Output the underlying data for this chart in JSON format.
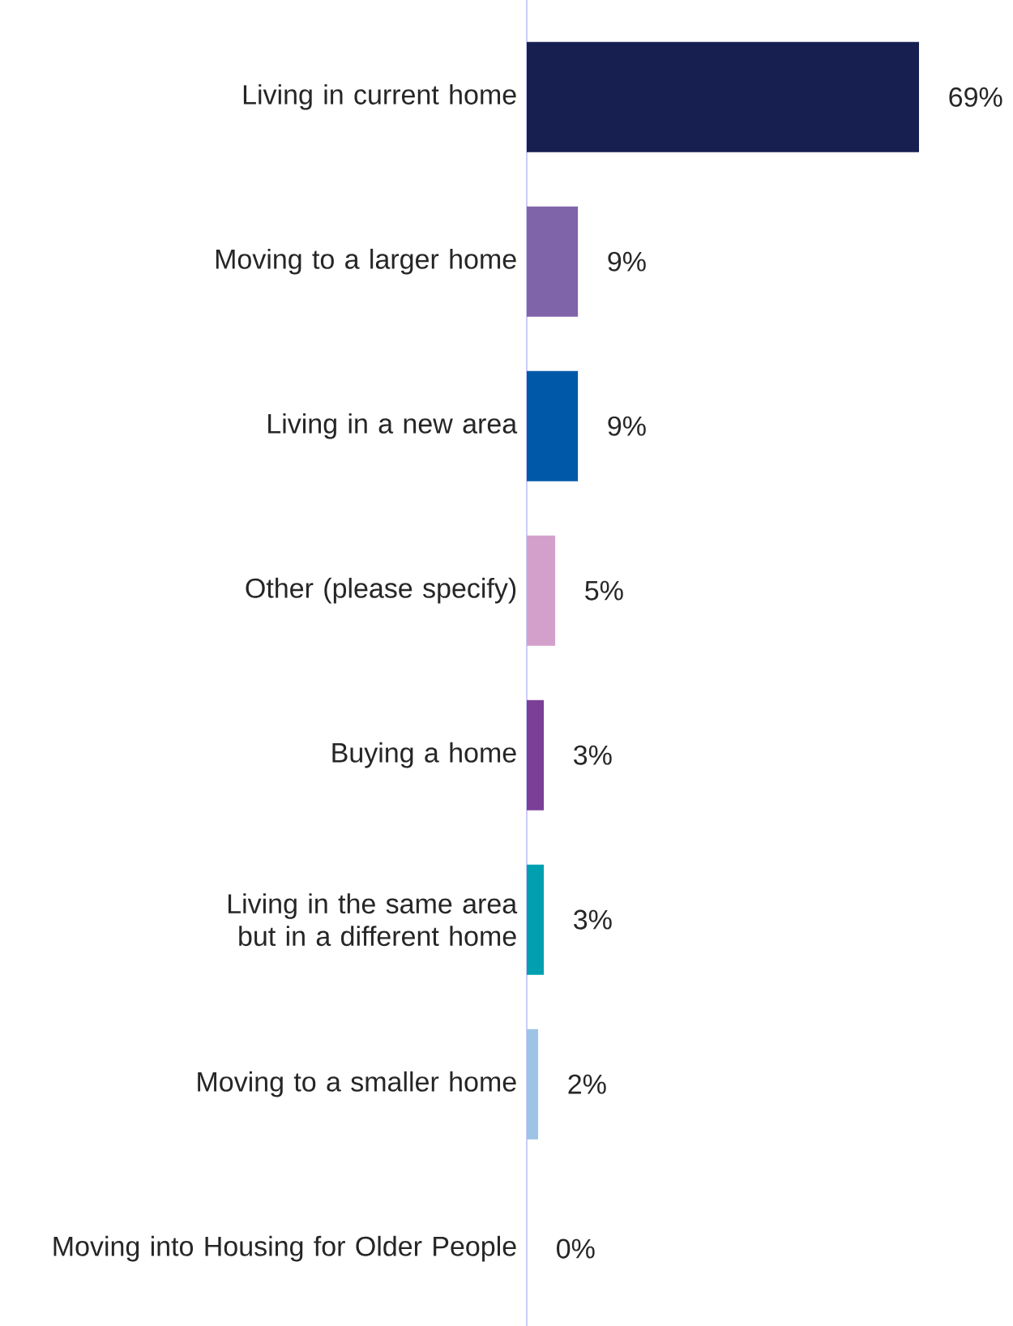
{
  "chart_data": {
    "type": "bar",
    "orientation": "horizontal",
    "categories": [
      "Living in current home",
      "Moving to a larger home",
      "Living in a new area",
      "Other (please specify)",
      "Buying a home",
      "Living in the same area but in a different home",
      "Moving to a smaller home",
      "Moving into Housing for Older People"
    ],
    "values": [
      69,
      9,
      9,
      5,
      3,
      3,
      2,
      0
    ],
    "colors": [
      "#161f50",
      "#8064a9",
      "#0058a8",
      "#d3a0cc",
      "#7b3f98",
      "#00a0b0",
      "#9dc3e6",
      "#7f7f7f"
    ],
    "value_labels": [
      "69%",
      "9%",
      "9%",
      "5%",
      "3%",
      "3%",
      "2%",
      "0%"
    ]
  }
}
